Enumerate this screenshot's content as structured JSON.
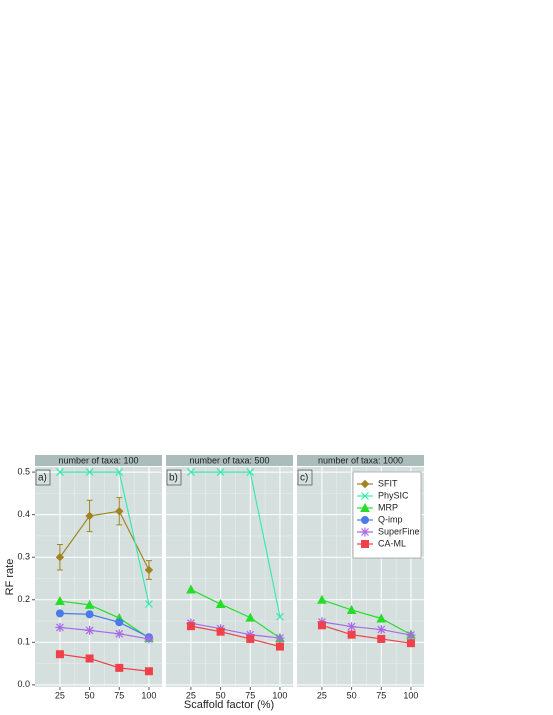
{
  "chart_data": [
    {
      "type": "line",
      "title": "number of taxa: 100",
      "label": "a)",
      "ylabel": "RF rate",
      "x": [
        25,
        50,
        75,
        100
      ],
      "xlim": [
        4,
        111
      ],
      "xticks": [
        25,
        50,
        75,
        100
      ],
      "ylim": [
        -0.005,
        0.512
      ],
      "yticks": [
        {
          "value": 0,
          "label": "0.0"
        },
        0.1,
        0.2,
        0.3,
        0.4,
        0.5
      ],
      "grid": true,
      "series": [
        {
          "name": "SFIT",
          "color": "#a08421",
          "marker": "diamond",
          "values": [
            0.3,
            0.397,
            0.408,
            0.27
          ],
          "errors": [
            0.03,
            0.037,
            0.032,
            0.022
          ]
        },
        {
          "name": "PhySIC",
          "color": "#3ee8b0",
          "marker": "cross",
          "values": [
            0.5,
            0.5,
            0.5,
            0.19
          ]
        },
        {
          "name": "MRP",
          "color": "#26dd2a",
          "marker": "triangle",
          "values": [
            0.197,
            0.188,
            0.157,
            0.11
          ]
        },
        {
          "name": "Q-imp",
          "color": "#4a7be8",
          "marker": "circle",
          "values": [
            0.168,
            0.166,
            0.147,
            0.112
          ]
        },
        {
          "name": "SuperFine",
          "color": "#a86ae8",
          "marker": "star",
          "values": [
            0.135,
            0.128,
            0.12,
            0.108
          ]
        },
        {
          "name": "CA-ML",
          "color": "#f0404a",
          "marker": "square",
          "values": [
            0.072,
            0.062,
            0.04,
            0.032
          ]
        }
      ]
    },
    {
      "type": "line",
      "title": "number of taxa: 500",
      "label": "b)",
      "xlabel": "Scaffold factor (%)",
      "x": [
        25,
        50,
        75,
        100
      ],
      "xlim": [
        4,
        111
      ],
      "xticks": [
        25,
        50,
        75,
        100
      ],
      "ylim": [
        -0.005,
        0.512
      ],
      "yticks": [
        {
          "value": 0,
          "label": "0.0"
        },
        0.1,
        0.2,
        0.3,
        0.4,
        0.5
      ],
      "grid": true,
      "series": [
        {
          "name": "PhySIC",
          "color": "#3ee8b0",
          "marker": "cross",
          "values": [
            0.5,
            0.5,
            0.5,
            0.16
          ]
        },
        {
          "name": "MRP",
          "color": "#26dd2a",
          "marker": "triangle",
          "values": [
            0.224,
            0.19,
            0.158,
            0.11
          ]
        },
        {
          "name": "SuperFine",
          "color": "#a86ae8",
          "marker": "star",
          "values": [
            0.145,
            0.132,
            0.118,
            0.11
          ]
        },
        {
          "name": "CA-ML",
          "color": "#f0404a",
          "marker": "square",
          "values": [
            0.138,
            0.125,
            0.108,
            0.09
          ]
        }
      ]
    },
    {
      "type": "line",
      "title": "number of taxa: 1000",
      "label": "c)",
      "legend": "top-right",
      "x": [
        25,
        50,
        75,
        100
      ],
      "xlim": [
        4,
        111
      ],
      "xticks": [
        25,
        50,
        75,
        100
      ],
      "ylim": [
        -0.005,
        0.512
      ],
      "yticks": [
        {
          "value": 0,
          "label": "0.0"
        },
        0.1,
        0.2,
        0.3,
        0.4,
        0.5
      ],
      "grid": true,
      "series": [
        {
          "name": "SFIT",
          "color": "#a08421",
          "marker": "diamond",
          "values": [
            null,
            null,
            null,
            null
          ]
        },
        {
          "name": "PhySIC",
          "color": "#3ee8b0",
          "marker": "cross",
          "values": [
            null,
            null,
            null,
            null
          ]
        },
        {
          "name": "MRP",
          "color": "#26dd2a",
          "marker": "triangle",
          "values": [
            0.2,
            0.176,
            0.156,
            0.118
          ]
        },
        {
          "name": "Q-imp",
          "color": "#4a7be8",
          "marker": "circle",
          "values": [
            null,
            null,
            null,
            null
          ]
        },
        {
          "name": "SuperFine",
          "color": "#a86ae8",
          "marker": "star",
          "values": [
            0.148,
            0.137,
            0.13,
            0.117
          ]
        },
        {
          "name": "CA-ML",
          "color": "#f0404a",
          "marker": "square",
          "values": [
            0.14,
            0.118,
            0.108,
            0.098
          ]
        }
      ]
    }
  ]
}
